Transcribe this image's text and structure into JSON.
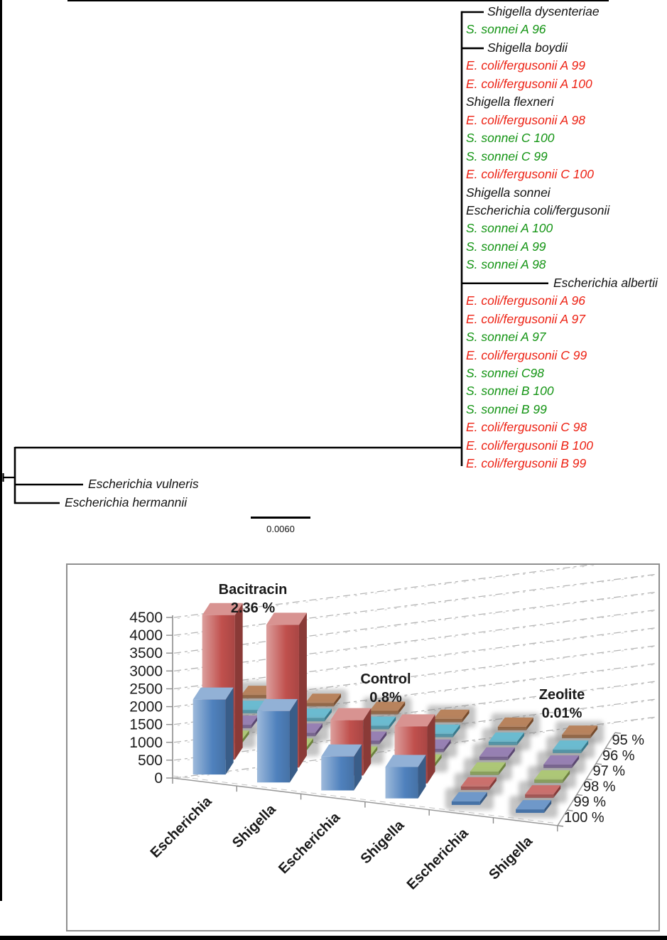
{
  "tree": {
    "scale_label": "0.0060",
    "colors": {
      "black": "#141414",
      "green": "#139413",
      "red": "#ed2113"
    },
    "taxa": [
      {
        "label": "Shigella dysenteriae",
        "color": "black",
        "branch": "short"
      },
      {
        "label": "S. sonnei A 96",
        "color": "green",
        "branch": "none"
      },
      {
        "label": "Shigella boydii",
        "color": "black",
        "branch": "short"
      },
      {
        "label": "E. coli/fergusonii A 99",
        "color": "red",
        "branch": "none"
      },
      {
        "label": "E. coli/fergusonii A 100",
        "color": "red",
        "branch": "none"
      },
      {
        "label": "Shigella flexneri",
        "color": "black",
        "branch": "none"
      },
      {
        "label": "E. coli/fergusonii A 98",
        "color": "red",
        "branch": "none"
      },
      {
        "label": "S. sonnei C 100",
        "color": "green",
        "branch": "none"
      },
      {
        "label": "S. sonnei C 99",
        "color": "green",
        "branch": "none"
      },
      {
        "label": "E. coli/fergusonii C 100",
        "color": "red",
        "branch": "none"
      },
      {
        "label": "Shigella sonnei",
        "color": "black",
        "branch": "none"
      },
      {
        "label": "Escherichia coli/fergusonii",
        "color": "black",
        "branch": "none"
      },
      {
        "label": "S. sonnei A 100",
        "color": "green",
        "branch": "none"
      },
      {
        "label": "S. sonnei A 99",
        "color": "green",
        "branch": "none"
      },
      {
        "label": "S. sonnei A 98",
        "color": "green",
        "branch": "none"
      },
      {
        "label": "Escherichia albertii",
        "color": "black",
        "branch": "long"
      },
      {
        "label": "E. coli/fergusonii A 96",
        "color": "red",
        "branch": "none"
      },
      {
        "label": "E. coli/fergusonii A 97",
        "color": "red",
        "branch": "none"
      },
      {
        "label": "S. sonnei A 97",
        "color": "green",
        "branch": "none"
      },
      {
        "label": "E. coli/fergusonii C 99",
        "color": "red",
        "branch": "none"
      },
      {
        "label": "S. sonnei C98",
        "color": "green",
        "branch": "none"
      },
      {
        "label": "S. sonnei B 100",
        "color": "green",
        "branch": "none"
      },
      {
        "label": "S. sonnei B 99",
        "color": "green",
        "branch": "none"
      },
      {
        "label": "E. coli/fergusonii C 98",
        "color": "red",
        "branch": "none"
      },
      {
        "label": "E. coli/fergusonii B 100",
        "color": "red",
        "branch": "none"
      },
      {
        "label": "E. coli/fergusonii B 99",
        "color": "red",
        "branch": "none"
      }
    ],
    "outgroup_taxa": [
      {
        "label": "Escherichia vulneris",
        "color": "black"
      },
      {
        "label": "Escherichia hermannii",
        "color": "black"
      }
    ]
  },
  "chart_data": {
    "type": "bar",
    "projection": "3d",
    "title": "",
    "groups": [
      {
        "label": "Bacitracin",
        "value_label": "2.36 %"
      },
      {
        "label": "Control",
        "value_label": "0.8%"
      },
      {
        "label": "Zeolite",
        "value_label": "0.01%"
      }
    ],
    "categories": [
      "Escherichia",
      "Shigella",
      "Escherichia",
      "Shigella",
      "Escherichia",
      "Shigella"
    ],
    "series": [
      {
        "name": "95 %",
        "color": "#a8683a",
        "values": [
          0,
          0,
          0,
          0,
          0,
          0
        ]
      },
      {
        "name": "96 %",
        "color": "#4bacc6",
        "values": [
          0,
          0,
          0,
          0,
          0,
          0
        ]
      },
      {
        "name": "97 %",
        "color": "#8064a2",
        "values": [
          0,
          0,
          0,
          0,
          0,
          0
        ]
      },
      {
        "name": "98 %",
        "color": "#9bbb59",
        "values": [
          0,
          0,
          0,
          0,
          0,
          0
        ]
      },
      {
        "name": "99 %",
        "color": "#c0504d",
        "values": [
          4050,
          4000,
          1550,
          1600,
          0,
          0
        ]
      },
      {
        "name": "100 %",
        "color": "#4f81bd",
        "values": [
          2100,
          2000,
          950,
          880,
          0,
          0
        ]
      }
    ],
    "ylim": [
      0,
      4500
    ],
    "yticks": [
      0,
      500,
      1000,
      1500,
      2000,
      2500,
      3000,
      3500,
      4000,
      4500
    ],
    "grid": "dashed",
    "legend_position": "right-depth-axis"
  }
}
